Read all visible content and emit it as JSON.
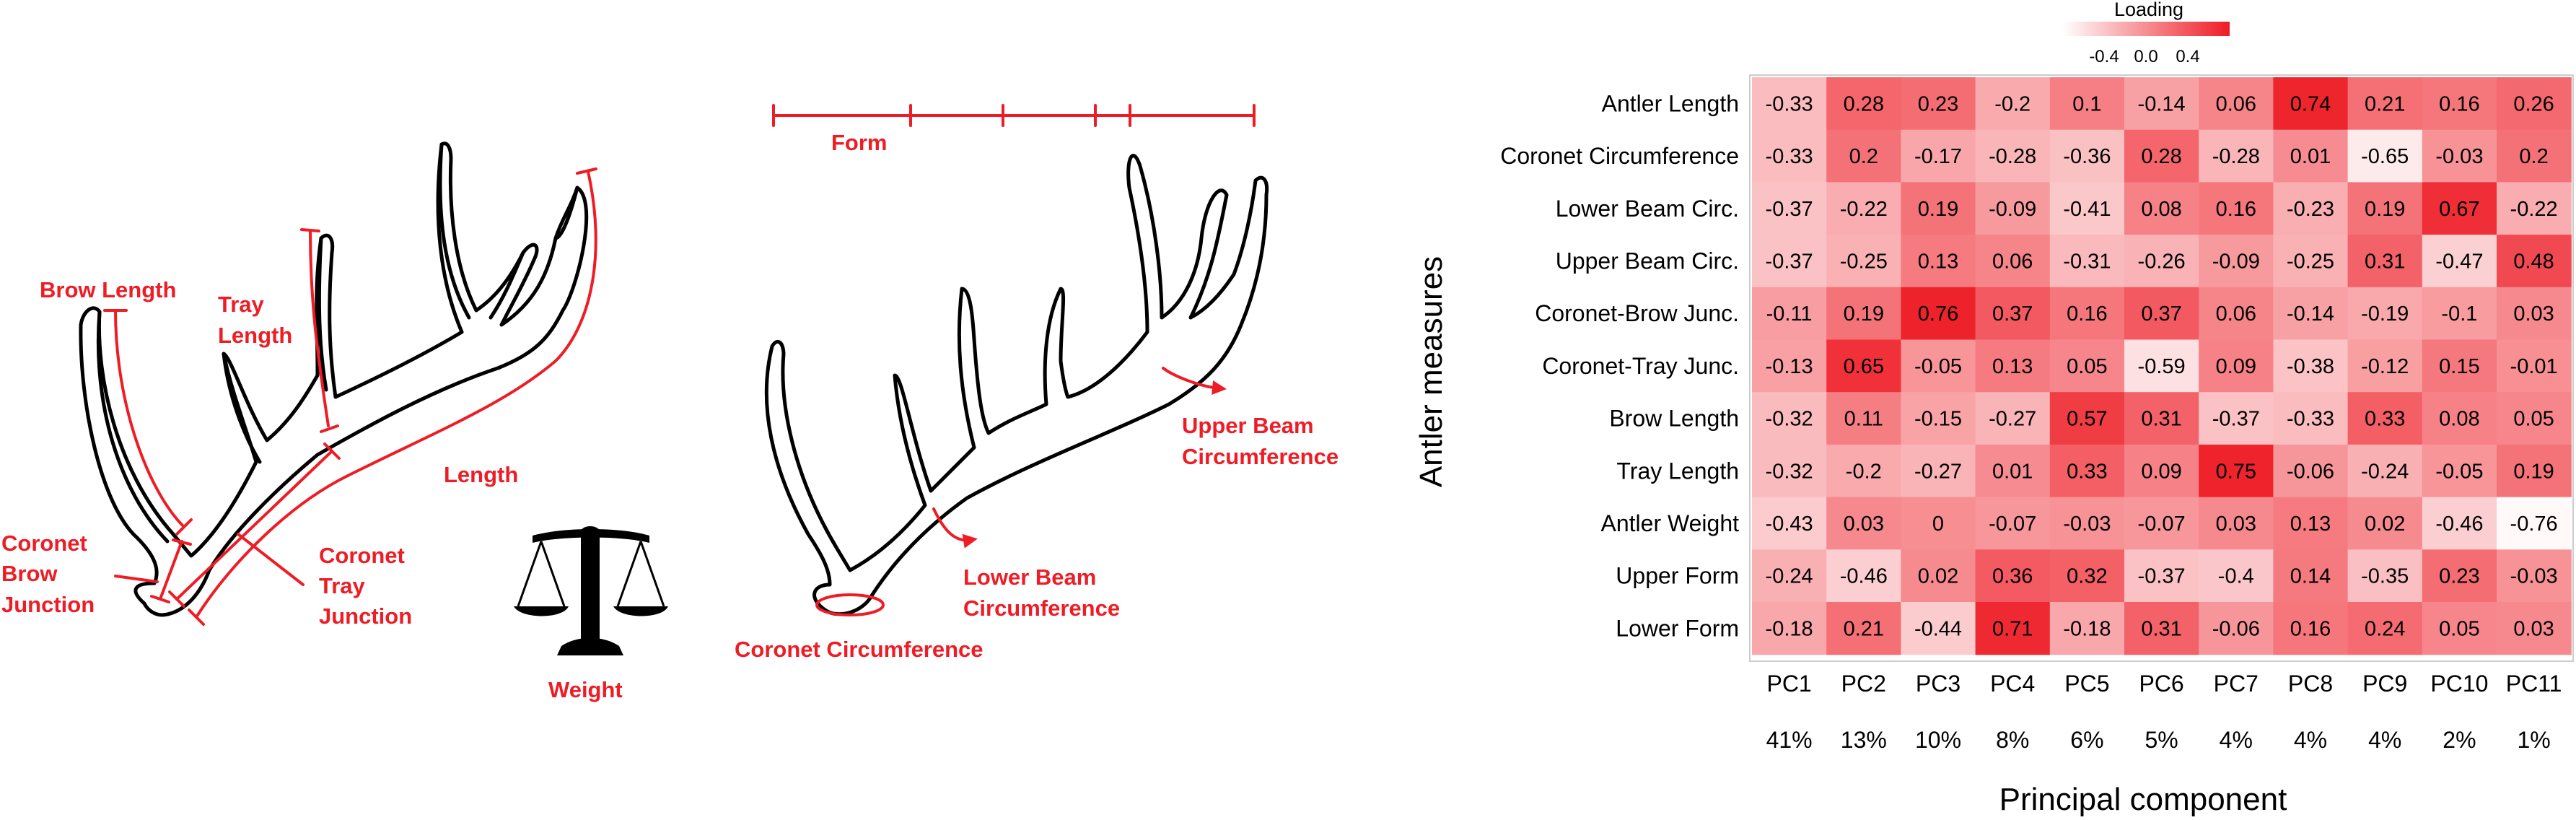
{
  "left_diagram": {
    "labels": {
      "brow_length": "Brow Length",
      "tray_length_1": "Tray",
      "tray_length_2": "Length",
      "length": "Length",
      "coronet_brow_1": "Coronet",
      "coronet_brow_2": "Brow",
      "coronet_brow_3": "Junction",
      "coronet_tray_1": "Coronet",
      "coronet_tray_2": "Tray",
      "coronet_tray_3": "Junction",
      "weight": "Weight"
    }
  },
  "middle_diagram": {
    "labels": {
      "form": "Form",
      "upper_beam_1": "Upper Beam",
      "upper_beam_2": "Circumference",
      "lower_beam_1": "Lower Beam",
      "lower_beam_2": "Circumference",
      "coronet_circ": "Coronet Circumference"
    }
  },
  "colors": {
    "label_red": "#ee1c25",
    "heat_low": "#ffffff",
    "heat_high": "#ee1c25",
    "outline": "#000000"
  },
  "chart_data": {
    "type": "heatmap",
    "xlabel": "Principal component",
    "ylabel": "Antler measures",
    "legend": {
      "title": "Loading",
      "ticks": [
        "-0.4",
        "0.0",
        "0.4"
      ],
      "range": [
        -0.8,
        0.8
      ],
      "placement": "top"
    },
    "x_categories": [
      "PC1",
      "PC2",
      "PC3",
      "PC4",
      "PC5",
      "PC6",
      "PC7",
      "PC8",
      "PC9",
      "PC10",
      "PC11"
    ],
    "variance_explained": [
      "41%",
      "13%",
      "10%",
      "8%",
      "6%",
      "5%",
      "4%",
      "4%",
      "4%",
      "2%",
      "1%"
    ],
    "y_categories": [
      "Antler Length",
      "Coronet Circumference",
      "Lower Beam Circ.",
      "Upper Beam Circ.",
      "Coronet-Brow Junc.",
      "Coronet-Tray Junc.",
      "Brow Length",
      "Tray Length",
      "Antler Weight",
      "Upper Form",
      "Lower Form"
    ],
    "values": [
      [
        -0.33,
        0.28,
        0.23,
        -0.2,
        0.1,
        -0.14,
        0.06,
        0.74,
        0.21,
        0.16,
        0.26
      ],
      [
        -0.33,
        0.2,
        -0.17,
        -0.28,
        -0.36,
        0.28,
        -0.28,
        0.01,
        -0.65,
        -0.03,
        0.2
      ],
      [
        -0.37,
        -0.22,
        0.19,
        -0.09,
        -0.41,
        0.08,
        0.16,
        -0.23,
        0.19,
        0.67,
        -0.22
      ],
      [
        -0.37,
        -0.25,
        0.13,
        0.06,
        -0.31,
        -0.26,
        -0.09,
        -0.25,
        0.31,
        -0.47,
        0.48
      ],
      [
        -0.11,
        0.19,
        0.76,
        0.37,
        0.16,
        0.37,
        0.06,
        -0.14,
        -0.19,
        -0.1,
        0.03
      ],
      [
        -0.13,
        0.65,
        -0.05,
        0.13,
        0.05,
        -0.59,
        0.09,
        -0.38,
        -0.12,
        0.15,
        -0.01
      ],
      [
        -0.32,
        0.11,
        -0.15,
        -0.27,
        0.57,
        0.31,
        -0.37,
        -0.33,
        0.33,
        0.08,
        0.05
      ],
      [
        -0.32,
        -0.2,
        -0.27,
        0.01,
        0.33,
        0.09,
        0.75,
        -0.06,
        -0.24,
        -0.05,
        0.19
      ],
      [
        -0.43,
        0.03,
        0,
        -0.07,
        -0.03,
        -0.07,
        0.03,
        0.13,
        0.02,
        -0.46,
        -0.76
      ],
      [
        -0.24,
        -0.46,
        0.02,
        0.36,
        0.32,
        -0.37,
        -0.4,
        0.14,
        -0.35,
        0.23,
        -0.03
      ],
      [
        -0.18,
        0.21,
        -0.44,
        0.71,
        -0.18,
        0.31,
        -0.06,
        0.16,
        0.24,
        0.05,
        0.03
      ]
    ]
  }
}
